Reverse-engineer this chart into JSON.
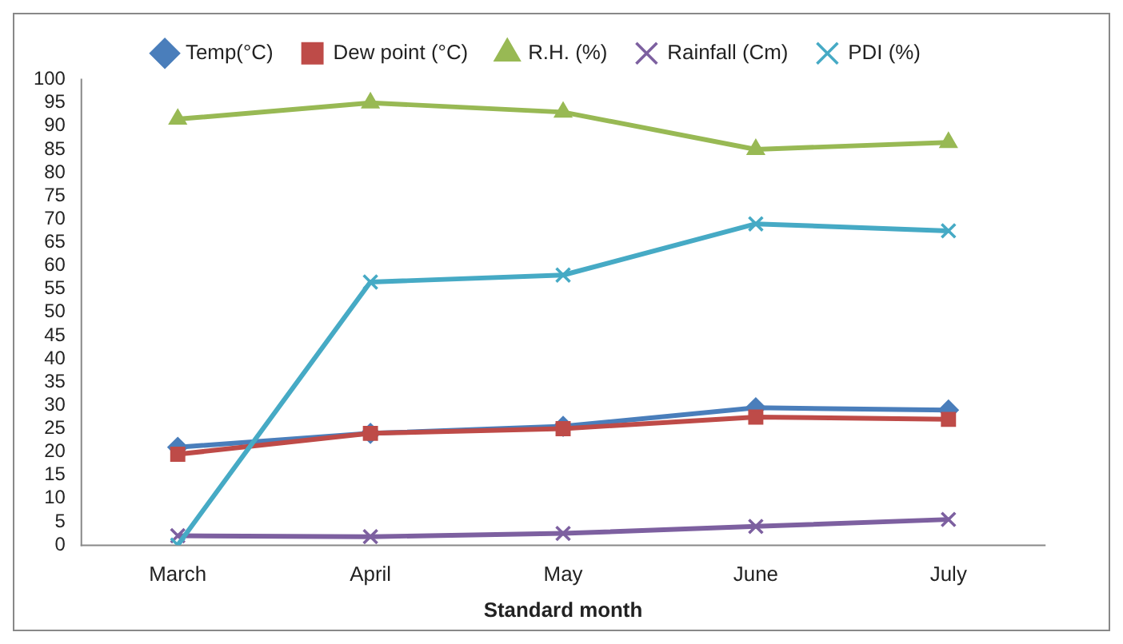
{
  "chart_data": {
    "type": "line",
    "xlabel": "Standard month",
    "categories": [
      "March",
      "April",
      "May",
      "June",
      "July"
    ],
    "ylim": [
      0,
      100
    ],
    "yticks": [
      0,
      5,
      10,
      15,
      20,
      25,
      30,
      35,
      40,
      45,
      50,
      55,
      60,
      65,
      70,
      75,
      80,
      85,
      90,
      95,
      100
    ],
    "grid": false,
    "legend": "top",
    "series": [
      {
        "name": "Temp(°C)",
        "color": "#4a7ebb",
        "marker": "diamond",
        "values": [
          21,
          24,
          25.5,
          29.5,
          29
        ]
      },
      {
        "name": "Dew point (°C)",
        "color": "#be4b48",
        "marker": "square",
        "values": [
          19.5,
          24,
          25,
          27.5,
          27
        ]
      },
      {
        "name": "R.H. (%)",
        "color": "#98b954",
        "marker": "triangle",
        "values": [
          91.5,
          95,
          93,
          85,
          86.5
        ]
      },
      {
        "name": "Rainfall (Cm)",
        "color": "#7d60a0",
        "marker": "cross",
        "values": [
          2,
          1.8,
          2.5,
          4,
          5.5
        ]
      },
      {
        "name": "PDI (%)",
        "color": "#46aac5",
        "marker": "cross",
        "values": [
          0,
          56.5,
          58,
          69,
          67.5
        ]
      }
    ]
  }
}
